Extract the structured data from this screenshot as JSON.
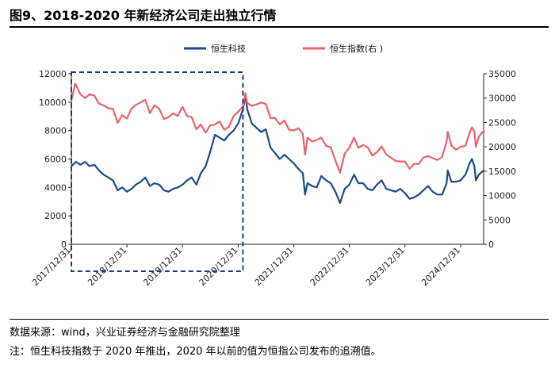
{
  "figure": {
    "title": "图9、2018-2020 年新经济公司走出独立行情",
    "source": "数据来源：wind，兴业证券经济与金融研究院整理",
    "note": "注：恒生科技指数于 2020 年推出，2020 年以前的值为恒指公司发布的追溯值。"
  },
  "chart_data": {
    "type": "line",
    "title": "",
    "xlabel": "",
    "ylabel": "",
    "ylabel_right": "",
    "x_ticks": [
      "2017/12/31",
      "2018/12/31",
      "2019/12/31",
      "2020/12/31",
      "2021/12/31",
      "2022/12/31",
      "2023/12/31",
      "2024/12/31"
    ],
    "x_range": [
      "2017-12-31",
      "2025-05-31"
    ],
    "ylim": [
      0,
      12000
    ],
    "ylim_right": [
      0,
      35000
    ],
    "y_ticks": [
      0,
      2000,
      4000,
      6000,
      8000,
      10000,
      12000
    ],
    "y_ticks_right": [
      0,
      5000,
      10000,
      15000,
      20000,
      25000,
      30000,
      35000
    ],
    "legend_position": "top",
    "grid": false,
    "highlight_box": {
      "x_start": "2017-12-31",
      "x_end": "2021-01-31",
      "style": "dashed"
    },
    "series": [
      {
        "name": "恒生科技",
        "axis": "left",
        "color": "#1a4a8a",
        "points": [
          [
            "2017-12-31",
            5500
          ],
          [
            "2018-01-31",
            5800
          ],
          [
            "2018-02-28",
            5600
          ],
          [
            "2018-03-31",
            5800
          ],
          [
            "2018-04-30",
            5500
          ],
          [
            "2018-05-31",
            5600
          ],
          [
            "2018-06-30",
            5200
          ],
          [
            "2018-07-31",
            4900
          ],
          [
            "2018-08-31",
            4700
          ],
          [
            "2018-09-30",
            4500
          ],
          [
            "2018-10-31",
            3800
          ],
          [
            "2018-11-30",
            4000
          ],
          [
            "2018-12-31",
            3700
          ],
          [
            "2019-01-31",
            3900
          ],
          [
            "2019-02-28",
            4200
          ],
          [
            "2019-03-31",
            4400
          ],
          [
            "2019-04-30",
            4700
          ],
          [
            "2019-05-31",
            4100
          ],
          [
            "2019-06-30",
            4300
          ],
          [
            "2019-07-31",
            4200
          ],
          [
            "2019-08-31",
            3800
          ],
          [
            "2019-09-30",
            3700
          ],
          [
            "2019-10-31",
            3900
          ],
          [
            "2019-11-30",
            4000
          ],
          [
            "2019-12-31",
            4200
          ],
          [
            "2020-01-31",
            4500
          ],
          [
            "2020-02-29",
            4700
          ],
          [
            "2020-03-31",
            4200
          ],
          [
            "2020-04-30",
            5000
          ],
          [
            "2020-05-31",
            5500
          ],
          [
            "2020-06-30",
            6500
          ],
          [
            "2020-07-31",
            7700
          ],
          [
            "2020-08-31",
            7500
          ],
          [
            "2020-09-30",
            7300
          ],
          [
            "2020-10-31",
            7700
          ],
          [
            "2020-11-30",
            8000
          ],
          [
            "2020-12-31",
            8500
          ],
          [
            "2021-01-31",
            9500
          ],
          [
            "2021-02-16",
            10500
          ],
          [
            "2021-02-28",
            9500
          ],
          [
            "2021-03-31",
            8500
          ],
          [
            "2021-04-30",
            8200
          ],
          [
            "2021-05-31",
            7900
          ],
          [
            "2021-06-30",
            8100
          ],
          [
            "2021-07-31",
            6800
          ],
          [
            "2021-08-31",
            6400
          ],
          [
            "2021-09-30",
            6000
          ],
          [
            "2021-10-31",
            6300
          ],
          [
            "2021-11-30",
            6000
          ],
          [
            "2021-12-31",
            5700
          ],
          [
            "2022-01-31",
            5300
          ],
          [
            "2022-02-28",
            5000
          ],
          [
            "2022-03-15",
            3500
          ],
          [
            "2022-03-31",
            4300
          ],
          [
            "2022-04-30",
            4100
          ],
          [
            "2022-05-31",
            4000
          ],
          [
            "2022-06-30",
            4800
          ],
          [
            "2022-07-31",
            4500
          ],
          [
            "2022-08-31",
            4300
          ],
          [
            "2022-09-30",
            3700
          ],
          [
            "2022-10-31",
            2900
          ],
          [
            "2022-11-30",
            3900
          ],
          [
            "2022-12-31",
            4200
          ],
          [
            "2023-01-31",
            4900
          ],
          [
            "2023-02-28",
            4300
          ],
          [
            "2023-03-31",
            4300
          ],
          [
            "2023-04-30",
            3900
          ],
          [
            "2023-05-31",
            3800
          ],
          [
            "2023-06-30",
            4200
          ],
          [
            "2023-07-31",
            4500
          ],
          [
            "2023-08-31",
            3900
          ],
          [
            "2023-09-30",
            3800
          ],
          [
            "2023-10-31",
            3700
          ],
          [
            "2023-11-30",
            3900
          ],
          [
            "2023-12-31",
            3600
          ],
          [
            "2024-01-31",
            3200
          ],
          [
            "2024-02-29",
            3300
          ],
          [
            "2024-03-31",
            3500
          ],
          [
            "2024-04-30",
            3800
          ],
          [
            "2024-05-31",
            4100
          ],
          [
            "2024-06-30",
            3700
          ],
          [
            "2024-07-31",
            3500
          ],
          [
            "2024-08-31",
            3500
          ],
          [
            "2024-09-30",
            4300
          ],
          [
            "2024-10-07",
            5200
          ],
          [
            "2024-10-31",
            4400
          ],
          [
            "2024-11-30",
            4400
          ],
          [
            "2024-12-31",
            4500
          ],
          [
            "2025-01-31",
            4900
          ],
          [
            "2025-02-28",
            5700
          ],
          [
            "2025-03-15",
            6000
          ],
          [
            "2025-03-31",
            5500
          ],
          [
            "2025-04-10",
            4500
          ],
          [
            "2025-04-30",
            4900
          ],
          [
            "2025-05-31",
            5200
          ]
        ]
      },
      {
        "name": "恒生指数(右 )",
        "axis": "right",
        "color": "#e8646a",
        "points": [
          [
            "2017-12-31",
            29500
          ],
          [
            "2018-01-26",
            33000
          ],
          [
            "2018-02-28",
            30800
          ],
          [
            "2018-03-31",
            30000
          ],
          [
            "2018-04-30",
            30800
          ],
          [
            "2018-05-31",
            30500
          ],
          [
            "2018-06-30",
            28900
          ],
          [
            "2018-07-31",
            28500
          ],
          [
            "2018-08-31",
            27900
          ],
          [
            "2018-09-30",
            27800
          ],
          [
            "2018-10-31",
            24900
          ],
          [
            "2018-11-30",
            26500
          ],
          [
            "2018-12-31",
            25800
          ],
          [
            "2019-01-31",
            27900
          ],
          [
            "2019-02-28",
            28600
          ],
          [
            "2019-03-31",
            29100
          ],
          [
            "2019-04-30",
            29700
          ],
          [
            "2019-05-31",
            26900
          ],
          [
            "2019-06-30",
            28500
          ],
          [
            "2019-07-31",
            27800
          ],
          [
            "2019-08-31",
            25700
          ],
          [
            "2019-09-30",
            26100
          ],
          [
            "2019-10-31",
            26900
          ],
          [
            "2019-11-30",
            26300
          ],
          [
            "2019-12-31",
            28200
          ],
          [
            "2020-01-31",
            26300
          ],
          [
            "2020-02-29",
            26100
          ],
          [
            "2020-03-31",
            23600
          ],
          [
            "2020-04-30",
            24600
          ],
          [
            "2020-05-31",
            22900
          ],
          [
            "2020-06-30",
            24400
          ],
          [
            "2020-07-31",
            24600
          ],
          [
            "2020-08-31",
            25200
          ],
          [
            "2020-09-30",
            23500
          ],
          [
            "2020-10-31",
            24100
          ],
          [
            "2020-11-30",
            26300
          ],
          [
            "2020-12-31",
            27200
          ],
          [
            "2021-01-31",
            28300
          ],
          [
            "2021-02-16",
            31000
          ],
          [
            "2021-02-28",
            29000
          ],
          [
            "2021-03-31",
            28400
          ],
          [
            "2021-04-30",
            28700
          ],
          [
            "2021-05-31",
            29100
          ],
          [
            "2021-06-30",
            28800
          ],
          [
            "2021-07-31",
            25900
          ],
          [
            "2021-08-31",
            25900
          ],
          [
            "2021-09-30",
            24600
          ],
          [
            "2021-10-31",
            25400
          ],
          [
            "2021-11-30",
            23500
          ],
          [
            "2021-12-31",
            23400
          ],
          [
            "2022-01-31",
            23800
          ],
          [
            "2022-02-28",
            22700
          ],
          [
            "2022-03-15",
            18400
          ],
          [
            "2022-03-31",
            21900
          ],
          [
            "2022-04-30",
            21100
          ],
          [
            "2022-05-31",
            21400
          ],
          [
            "2022-06-30",
            21900
          ],
          [
            "2022-07-31",
            20200
          ],
          [
            "2022-08-31",
            19900
          ],
          [
            "2022-09-30",
            17200
          ],
          [
            "2022-10-31",
            14700
          ],
          [
            "2022-11-30",
            18600
          ],
          [
            "2022-12-31",
            19800
          ],
          [
            "2023-01-31",
            21900
          ],
          [
            "2023-02-28",
            19800
          ],
          [
            "2023-03-31",
            20400
          ],
          [
            "2023-04-30",
            19900
          ],
          [
            "2023-05-31",
            18200
          ],
          [
            "2023-06-30",
            18900
          ],
          [
            "2023-07-31",
            20100
          ],
          [
            "2023-08-31",
            18400
          ],
          [
            "2023-09-30",
            17800
          ],
          [
            "2023-10-31",
            17100
          ],
          [
            "2023-11-30",
            17000
          ],
          [
            "2023-12-31",
            17000
          ],
          [
            "2024-01-31",
            15500
          ],
          [
            "2024-02-29",
            16500
          ],
          [
            "2024-03-31",
            16500
          ],
          [
            "2024-04-30",
            17800
          ],
          [
            "2024-05-31",
            18100
          ],
          [
            "2024-06-30",
            17700
          ],
          [
            "2024-07-31",
            17300
          ],
          [
            "2024-08-31",
            17900
          ],
          [
            "2024-09-30",
            21100
          ],
          [
            "2024-10-07",
            23100
          ],
          [
            "2024-10-31",
            20300
          ],
          [
            "2024-11-30",
            19400
          ],
          [
            "2024-12-31",
            20000
          ],
          [
            "2025-01-31",
            20200
          ],
          [
            "2025-02-28",
            22900
          ],
          [
            "2025-03-15",
            24000
          ],
          [
            "2025-03-31",
            23100
          ],
          [
            "2025-04-10",
            20000
          ],
          [
            "2025-04-30",
            22100
          ],
          [
            "2025-05-31",
            23300
          ]
        ]
      }
    ]
  }
}
